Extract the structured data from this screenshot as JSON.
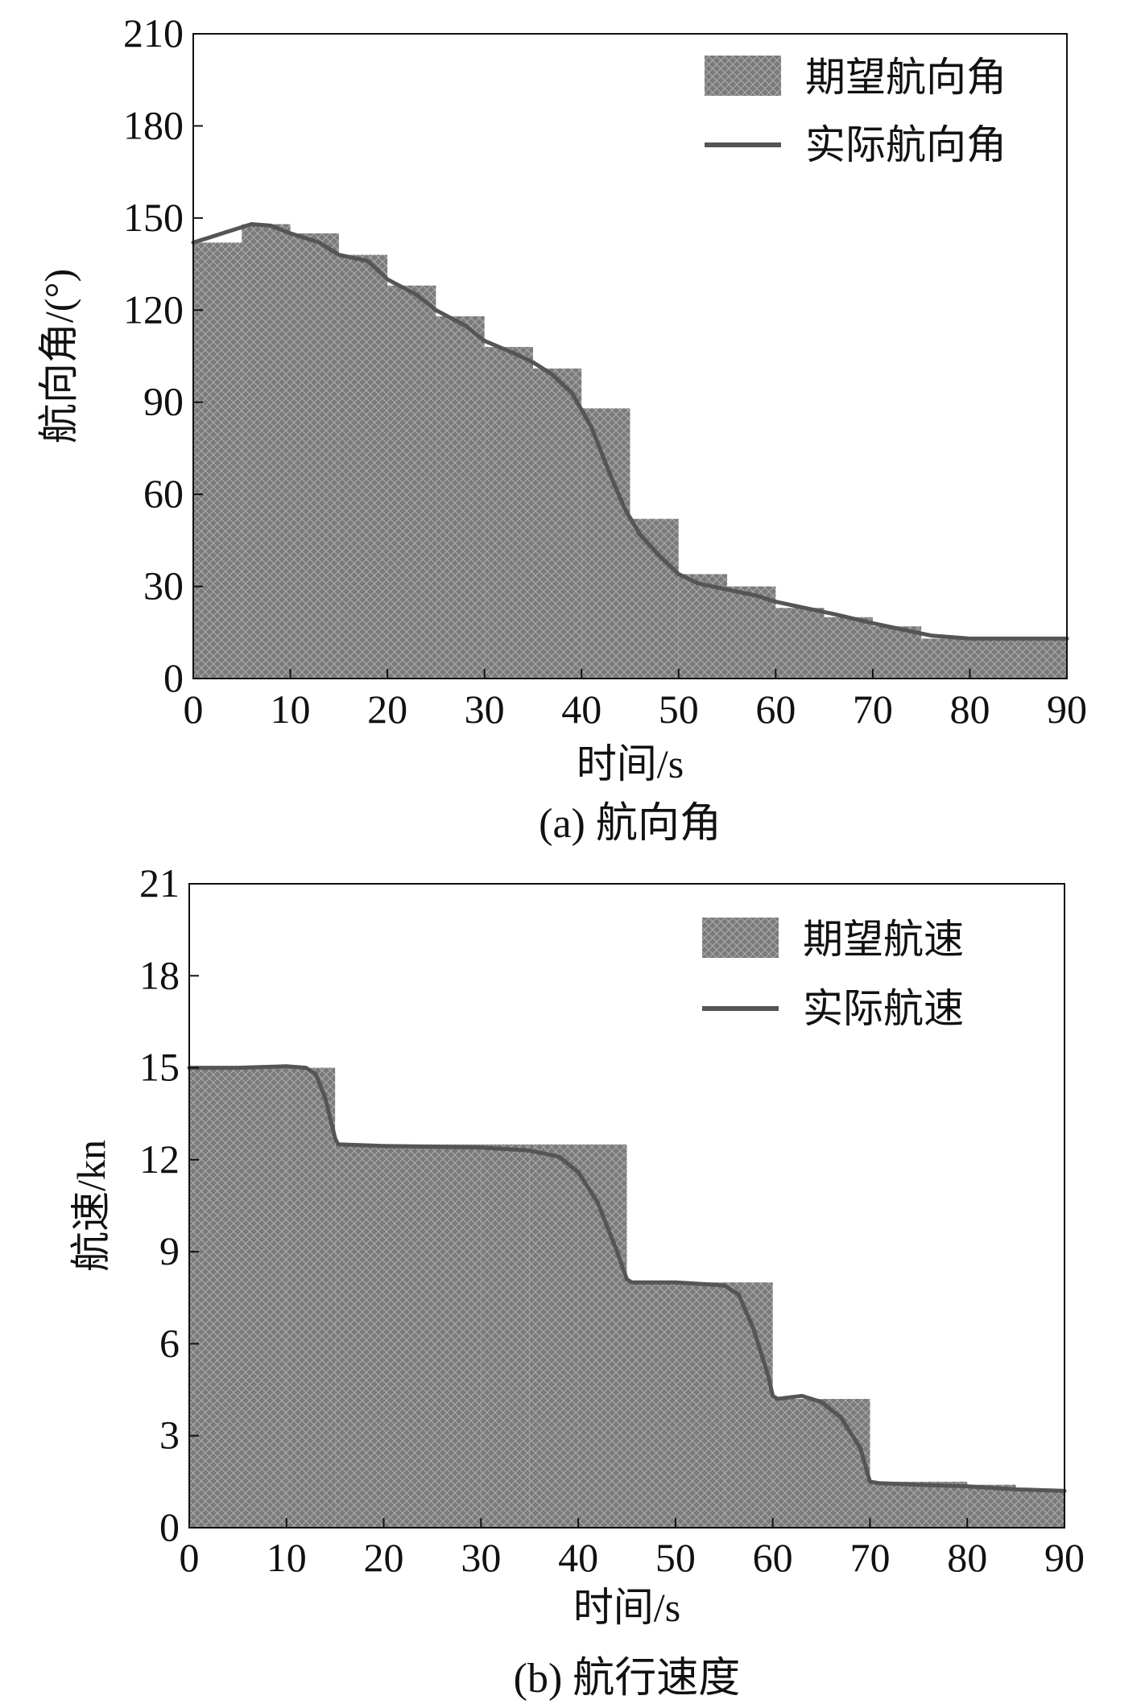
{
  "chart_data": [
    {
      "type": "bar",
      "caption": "(a) 航向角",
      "xlabel": "时间/s",
      "ylabel": "航向角/(°)",
      "xlim": [
        0,
        90
      ],
      "ylim": [
        0,
        210
      ],
      "xticks": [
        0,
        10,
        20,
        30,
        40,
        50,
        60,
        70,
        80,
        90
      ],
      "yticks": [
        0,
        30,
        60,
        90,
        120,
        150,
        180,
        210
      ],
      "legend_position": "top-right",
      "grid": false,
      "series": [
        {
          "name": "期望航向角",
          "kind": "step-bar",
          "color": "#7a7a7a",
          "pattern": "crosshatch",
          "x": [
            0,
            5,
            10,
            15,
            20,
            25,
            30,
            35,
            40,
            45,
            50,
            55,
            60,
            65,
            70,
            75,
            80,
            85
          ],
          "width": 5,
          "values": [
            142,
            148,
            145,
            138,
            128,
            118,
            108,
            101,
            88,
            52,
            34,
            30,
            23,
            20,
            17,
            13,
            13,
            13
          ]
        },
        {
          "name": "实际航向角",
          "kind": "line",
          "color": "#555555",
          "x": [
            0,
            3,
            6,
            8,
            10,
            13,
            15,
            18,
            20,
            23,
            25,
            28,
            30,
            33,
            35,
            37,
            39,
            41,
            43,
            44.5,
            46,
            48,
            50,
            52,
            55,
            58,
            60,
            63,
            66,
            70,
            73,
            76,
            80,
            85,
            90
          ],
          "y": [
            142,
            145,
            148,
            147.5,
            145,
            142,
            138,
            136,
            130,
            125,
            120,
            115,
            110,
            106,
            103,
            99,
            93,
            82,
            66,
            55,
            47,
            40,
            34,
            31,
            29,
            27,
            25,
            23,
            21,
            18,
            16,
            14,
            13,
            13,
            13
          ]
        }
      ]
    },
    {
      "type": "bar",
      "caption": "(b) 航行速度",
      "xlabel": "时间/s",
      "ylabel": "航速/kn",
      "xlim": [
        0,
        90
      ],
      "ylim": [
        0,
        21
      ],
      "xticks": [
        0,
        10,
        20,
        30,
        40,
        50,
        60,
        70,
        80,
        90
      ],
      "yticks": [
        0,
        3,
        6,
        9,
        12,
        15,
        18,
        21
      ],
      "legend_position": "top-right",
      "grid": false,
      "series": [
        {
          "name": "期望航速",
          "kind": "step-bar",
          "color": "#7a7a7a",
          "pattern": "crosshatch",
          "x": [
            0,
            5,
            10,
            15,
            20,
            25,
            30,
            35,
            40,
            45,
            50,
            55,
            60,
            65,
            70,
            75,
            80,
            85
          ],
          "width": 5,
          "values": [
            15,
            15,
            15,
            12.5,
            12.5,
            12.5,
            12.5,
            12.5,
            12.5,
            8,
            8,
            8,
            4.2,
            4.2,
            1.5,
            1.5,
            1.4,
            1.2
          ]
        },
        {
          "name": "实际航速",
          "kind": "line",
          "color": "#555555",
          "x": [
            0,
            5,
            10,
            12,
            13,
            14,
            15,
            15.3,
            20,
            30,
            35,
            38,
            40,
            42,
            44,
            45,
            45.5,
            50,
            55,
            56.5,
            58,
            59.5,
            60,
            60.5,
            63,
            65,
            67,
            69,
            70,
            71,
            75,
            80,
            85,
            90
          ],
          "y": [
            15,
            15,
            15.05,
            15,
            14.8,
            14,
            12.7,
            12.5,
            12.45,
            12.4,
            12.3,
            12.1,
            11.6,
            10.6,
            9,
            8.1,
            8,
            8,
            7.9,
            7.6,
            6.5,
            5,
            4.3,
            4.2,
            4.3,
            4.1,
            3.6,
            2.6,
            1.5,
            1.45,
            1.4,
            1.35,
            1.25,
            1.2
          ]
        }
      ]
    }
  ]
}
